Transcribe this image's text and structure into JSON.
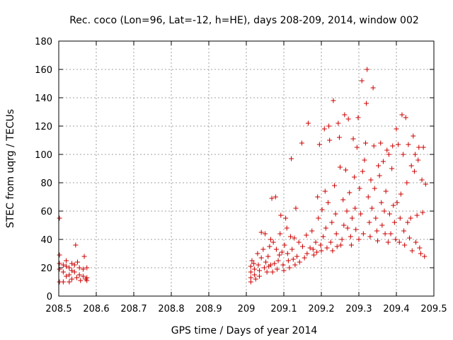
{
  "chart_data": {
    "type": "scatter",
    "title": "Rec. coco (Lon=96, Lat=-12, h=HE), days 208-209, 2014, window 002",
    "xlabel": "GPS time / Days of year 2014",
    "ylabel": "STEC from uqrg / TECUs",
    "xlim": [
      208.5,
      209.5
    ],
    "ylim": [
      0,
      180
    ],
    "grid": true,
    "marker": "plus",
    "color": "#cc0000",
    "x_ticks": [
      {
        "value": 208.5,
        "label": "208.5"
      },
      {
        "value": 208.6,
        "label": "208.6"
      },
      {
        "value": 208.7,
        "label": "208.7"
      },
      {
        "value": 208.8,
        "label": "208.8"
      },
      {
        "value": 208.9,
        "label": "208.9"
      },
      {
        "value": 209.0,
        "label": "209"
      },
      {
        "value": 209.1,
        "label": "209.1"
      },
      {
        "value": 209.2,
        "label": "209.2"
      },
      {
        "value": 209.3,
        "label": "209.3"
      },
      {
        "value": 209.4,
        "label": "209.4"
      },
      {
        "value": 209.5,
        "label": "209.5"
      }
    ],
    "y_ticks": [
      {
        "value": 0,
        "label": "0"
      },
      {
        "value": 20,
        "label": "20"
      },
      {
        "value": 40,
        "label": "40"
      },
      {
        "value": 60,
        "label": "60"
      },
      {
        "value": 80,
        "label": "80"
      },
      {
        "value": 100,
        "label": "100"
      },
      {
        "value": 120,
        "label": "120"
      },
      {
        "value": 140,
        "label": "140"
      },
      {
        "value": 160,
        "label": "160"
      },
      {
        "value": 180,
        "label": "180"
      }
    ],
    "series": [
      {
        "name": "STEC",
        "points": [
          [
            208.502,
            29
          ],
          [
            208.502,
            23
          ],
          [
            208.502,
            19
          ],
          [
            208.502,
            10
          ],
          [
            208.502,
            55
          ],
          [
            208.512,
            22
          ],
          [
            208.512,
            17
          ],
          [
            208.512,
            10
          ],
          [
            208.52,
            25
          ],
          [
            208.52,
            21
          ],
          [
            208.52,
            14
          ],
          [
            208.528,
            20
          ],
          [
            208.528,
            15
          ],
          [
            208.528,
            10
          ],
          [
            208.535,
            23
          ],
          [
            208.535,
            18
          ],
          [
            208.535,
            12
          ],
          [
            208.542,
            22
          ],
          [
            208.542,
            17
          ],
          [
            208.545,
            36
          ],
          [
            208.548,
            13
          ],
          [
            208.55,
            24
          ],
          [
            208.555,
            20
          ],
          [
            208.555,
            15
          ],
          [
            208.558,
            11
          ],
          [
            208.565,
            19
          ],
          [
            208.565,
            14
          ],
          [
            208.568,
            28
          ],
          [
            208.572,
            12
          ],
          [
            208.575,
            20
          ],
          [
            208.575,
            13
          ],
          [
            208.575,
            11
          ],
          [
            209.012,
            21
          ],
          [
            209.012,
            17
          ],
          [
            209.012,
            13
          ],
          [
            209.012,
            10
          ],
          [
            209.015,
            25
          ],
          [
            209.02,
            23
          ],
          [
            209.022,
            19
          ],
          [
            209.022,
            15
          ],
          [
            209.025,
            12
          ],
          [
            209.03,
            30
          ],
          [
            209.032,
            22
          ],
          [
            209.035,
            18
          ],
          [
            209.035,
            14
          ],
          [
            209.04,
            45
          ],
          [
            209.04,
            27
          ],
          [
            209.045,
            33
          ],
          [
            209.048,
            20
          ],
          [
            209.05,
            44
          ],
          [
            209.052,
            24
          ],
          [
            209.055,
            17
          ],
          [
            209.058,
            28
          ],
          [
            209.06,
            21
          ],
          [
            209.062,
            35
          ],
          [
            209.065,
            40
          ],
          [
            209.065,
            22
          ],
          [
            209.068,
            69
          ],
          [
            209.07,
            17
          ],
          [
            209.072,
            38
          ],
          [
            209.075,
            23
          ],
          [
            209.078,
            70
          ],
          [
            209.08,
            33
          ],
          [
            209.082,
            19
          ],
          [
            209.085,
            25
          ],
          [
            209.088,
            29
          ],
          [
            209.09,
            44
          ],
          [
            209.092,
            57
          ],
          [
            209.095,
            31
          ],
          [
            209.098,
            22
          ],
          [
            209.1,
            18
          ],
          [
            209.102,
            36
          ],
          [
            209.105,
            55
          ],
          [
            209.108,
            48
          ],
          [
            209.11,
            30
          ],
          [
            209.112,
            25
          ],
          [
            209.115,
            20
          ],
          [
            209.118,
            42
          ],
          [
            209.12,
            97
          ],
          [
            209.122,
            33
          ],
          [
            209.125,
            26
          ],
          [
            209.128,
            41
          ],
          [
            209.13,
            22
          ],
          [
            209.132,
            62
          ],
          [
            209.135,
            28
          ],
          [
            209.14,
            38
          ],
          [
            209.142,
            24
          ],
          [
            209.148,
            108
          ],
          [
            209.15,
            35
          ],
          [
            209.155,
            27
          ],
          [
            209.16,
            43
          ],
          [
            209.162,
            30
          ],
          [
            209.165,
            122
          ],
          [
            209.17,
            34
          ],
          [
            209.175,
            46
          ],
          [
            209.178,
            33
          ],
          [
            209.18,
            29
          ],
          [
            209.185,
            38
          ],
          [
            209.188,
            31
          ],
          [
            209.19,
            70
          ],
          [
            209.192,
            55
          ],
          [
            209.195,
            107
          ],
          [
            209.198,
            36
          ],
          [
            209.2,
            32
          ],
          [
            209.202,
            61
          ],
          [
            209.205,
            42
          ],
          [
            209.208,
            118
          ],
          [
            209.21,
            74
          ],
          [
            209.212,
            48
          ],
          [
            209.215,
            34
          ],
          [
            209.218,
            66
          ],
          [
            209.22,
            120
          ],
          [
            209.222,
            110
          ],
          [
            209.225,
            38
          ],
          [
            209.228,
            52
          ],
          [
            209.23,
            32
          ],
          [
            209.232,
            138
          ],
          [
            209.235,
            78
          ],
          [
            209.238,
            58
          ],
          [
            209.24,
            44
          ],
          [
            209.242,
            35
          ],
          [
            209.245,
            122
          ],
          [
            209.248,
            112
          ],
          [
            209.25,
            91
          ],
          [
            209.252,
            36
          ],
          [
            209.255,
            40
          ],
          [
            209.258,
            68
          ],
          [
            209.26,
            50
          ],
          [
            209.262,
            128
          ],
          [
            209.265,
            89
          ],
          [
            209.268,
            60
          ],
          [
            209.27,
            48
          ],
          [
            209.272,
            125
          ],
          [
            209.275,
            73
          ],
          [
            209.278,
            42
          ],
          [
            209.28,
            36
          ],
          [
            209.282,
            55
          ],
          [
            209.285,
            111
          ],
          [
            209.288,
            84
          ],
          [
            209.29,
            62
          ],
          [
            209.292,
            47
          ],
          [
            209.295,
            105
          ],
          [
            209.298,
            126
          ],
          [
            209.3,
            40
          ],
          [
            209.302,
            76
          ],
          [
            209.305,
            58
          ],
          [
            209.308,
            152
          ],
          [
            209.31,
            88
          ],
          [
            209.312,
            44
          ],
          [
            209.315,
            96
          ],
          [
            209.318,
            108
          ],
          [
            209.32,
            136
          ],
          [
            209.322,
            160
          ],
          [
            209.325,
            70
          ],
          [
            209.328,
            52
          ],
          [
            209.33,
            42
          ],
          [
            209.332,
            82
          ],
          [
            209.335,
            62
          ],
          [
            209.338,
            147
          ],
          [
            209.34,
            106
          ],
          [
            209.342,
            76
          ],
          [
            209.345,
            55
          ],
          [
            209.348,
            46
          ],
          [
            209.35,
            39
          ],
          [
            209.352,
            92
          ],
          [
            209.355,
            85
          ],
          [
            209.358,
            108
          ],
          [
            209.36,
            66
          ],
          [
            209.362,
            50
          ],
          [
            209.365,
            95
          ],
          [
            209.368,
            60
          ],
          [
            209.37,
            44
          ],
          [
            209.372,
            74
          ],
          [
            209.375,
            103
          ],
          [
            209.378,
            38
          ],
          [
            209.38,
            100
          ],
          [
            209.382,
            58
          ],
          [
            209.385,
            44
          ],
          [
            209.388,
            90
          ],
          [
            209.39,
            106
          ],
          [
            209.392,
            64
          ],
          [
            209.395,
            52
          ],
          [
            209.398,
            40
          ],
          [
            209.4,
            118
          ],
          [
            209.402,
            66
          ],
          [
            209.405,
            107
          ],
          [
            209.408,
            38
          ],
          [
            209.41,
            55
          ],
          [
            209.412,
            72
          ],
          [
            209.415,
            128
          ],
          [
            209.418,
            100
          ],
          [
            209.42,
            46
          ],
          [
            209.422,
            36
          ],
          [
            209.425,
            126
          ],
          [
            209.428,
            80
          ],
          [
            209.43,
            52
          ],
          [
            209.432,
            107
          ],
          [
            209.435,
            41
          ],
          [
            209.438,
            55
          ],
          [
            209.44,
            92
          ],
          [
            209.442,
            32
          ],
          [
            209.445,
            113
          ],
          [
            209.448,
            88
          ],
          [
            209.45,
            100
          ],
          [
            209.452,
            38
          ],
          [
            209.455,
            57
          ],
          [
            209.458,
            96
          ],
          [
            209.46,
            105
          ],
          [
            209.462,
            34
          ],
          [
            209.465,
            30
          ],
          [
            209.468,
            82
          ],
          [
            209.47,
            59
          ],
          [
            209.472,
            105
          ],
          [
            209.475,
            28
          ],
          [
            209.478,
            79
          ]
        ]
      }
    ]
  }
}
